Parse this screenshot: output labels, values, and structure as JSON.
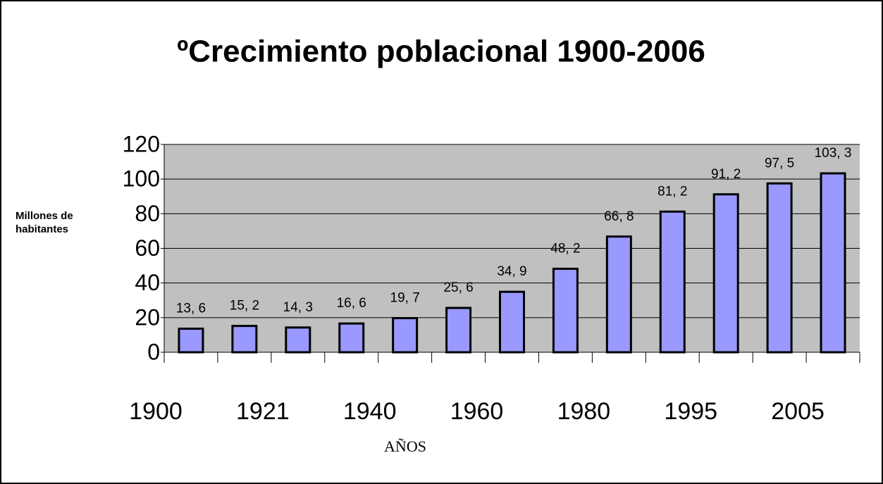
{
  "chart_data": {
    "type": "bar",
    "title": "ºCrecimiento poblacional 1900-2006",
    "y_label": "Millones de habitantes",
    "x_label": "AÑOS",
    "categories": [
      "1900",
      null,
      "1921",
      null,
      "1940",
      null,
      "1960",
      null,
      "1980",
      null,
      "1995",
      null,
      "2005"
    ],
    "values": [
      13.6,
      15.2,
      14.3,
      16.6,
      19.7,
      25.6,
      34.9,
      48.2,
      66.8,
      81.2,
      91.2,
      97.5,
      103.3
    ],
    "value_labels": [
      "13, 6",
      "15, 2",
      "14, 3",
      "16, 6",
      "19, 7",
      "25, 6",
      "34, 9",
      "48, 2",
      "66, 8",
      "81, 2",
      "91, 2",
      "97, 5",
      "103, 3"
    ],
    "color": "#9999ff",
    "ylim": [
      0,
      120
    ],
    "yticks": [
      0,
      20,
      40,
      60,
      80,
      100,
      120
    ],
    "grid": true
  }
}
